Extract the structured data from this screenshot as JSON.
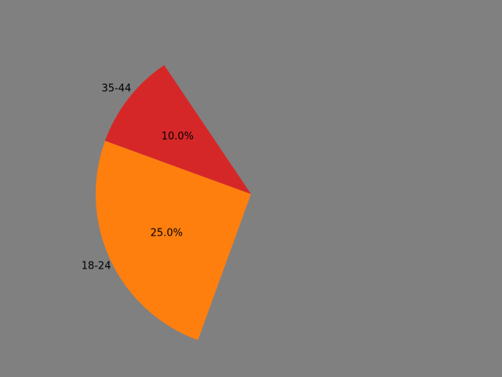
{
  "chart_data": {
    "type": "pie",
    "title": "",
    "slices": [
      {
        "label": "18-24",
        "percent": 25.0,
        "percent_label": "25.0%",
        "color": "#ff7f0e"
      },
      {
        "label": "35-44",
        "percent": 10.0,
        "percent_label": "10.0%",
        "color": "#d62728"
      }
    ],
    "start_angle_deg": 160,
    "counterclockwise": true,
    "background": "#808080"
  }
}
